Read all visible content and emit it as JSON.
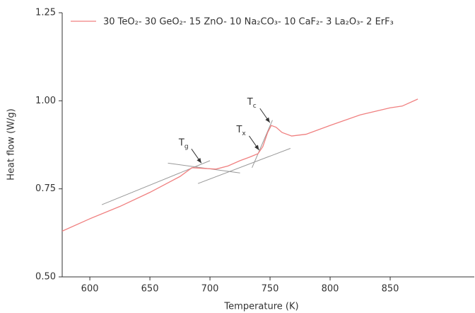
{
  "chart_data": {
    "type": "line",
    "xlabel": "Temperature (K)",
    "ylabel": "Heat flow (W/g)",
    "xlim": [
      577,
      920
    ],
    "ylim": [
      0.5,
      1.25
    ],
    "xticks": [
      600,
      650,
      700,
      750,
      800,
      850
    ],
    "yticks": [
      {
        "value": 0.5,
        "label": "0.50"
      },
      {
        "value": 0.75,
        "label": "0.75"
      },
      {
        "value": 1.0,
        "label": "1.00"
      },
      {
        "value": 1.25,
        "label": "1.25"
      }
    ],
    "legend": "top",
    "series": [
      {
        "name": "30 TeO₂- 30 GeO₂- 15 ZnO- 10 Na₂CO₃- 10 CaF₂- 3 La₂O₃- 2 ErF₃",
        "color": "#f08080",
        "x": [
          577,
          600,
          625,
          650,
          675,
          685,
          695,
          705,
          715,
          725,
          733,
          740,
          744,
          748,
          751,
          755,
          760,
          768,
          780,
          800,
          825,
          850,
          860,
          873
        ],
        "values": [
          0.63,
          0.665,
          0.7,
          0.74,
          0.785,
          0.81,
          0.808,
          0.806,
          0.815,
          0.83,
          0.84,
          0.85,
          0.87,
          0.91,
          0.93,
          0.925,
          0.91,
          0.9,
          0.905,
          0.93,
          0.96,
          0.98,
          0.985,
          1.005
        ]
      }
    ],
    "tangent_lines": [
      {
        "x": [
          610,
          700
        ],
        "y": [
          0.705,
          0.83
        ]
      },
      {
        "x": [
          665,
          725
        ],
        "y": [
          0.823,
          0.795
        ]
      },
      {
        "x": [
          690,
          767
        ],
        "y": [
          0.765,
          0.865
        ]
      },
      {
        "x": [
          735,
          752
        ],
        "y": [
          0.81,
          0.945
        ]
      }
    ],
    "annotations": [
      {
        "text": "T",
        "sub": "g",
        "x": 694,
        "y": 0.815
      },
      {
        "text": "T",
        "sub": "x",
        "x": 742,
        "y": 0.852
      },
      {
        "text": "T",
        "sub": "c",
        "x": 751,
        "y": 0.93
      }
    ]
  }
}
